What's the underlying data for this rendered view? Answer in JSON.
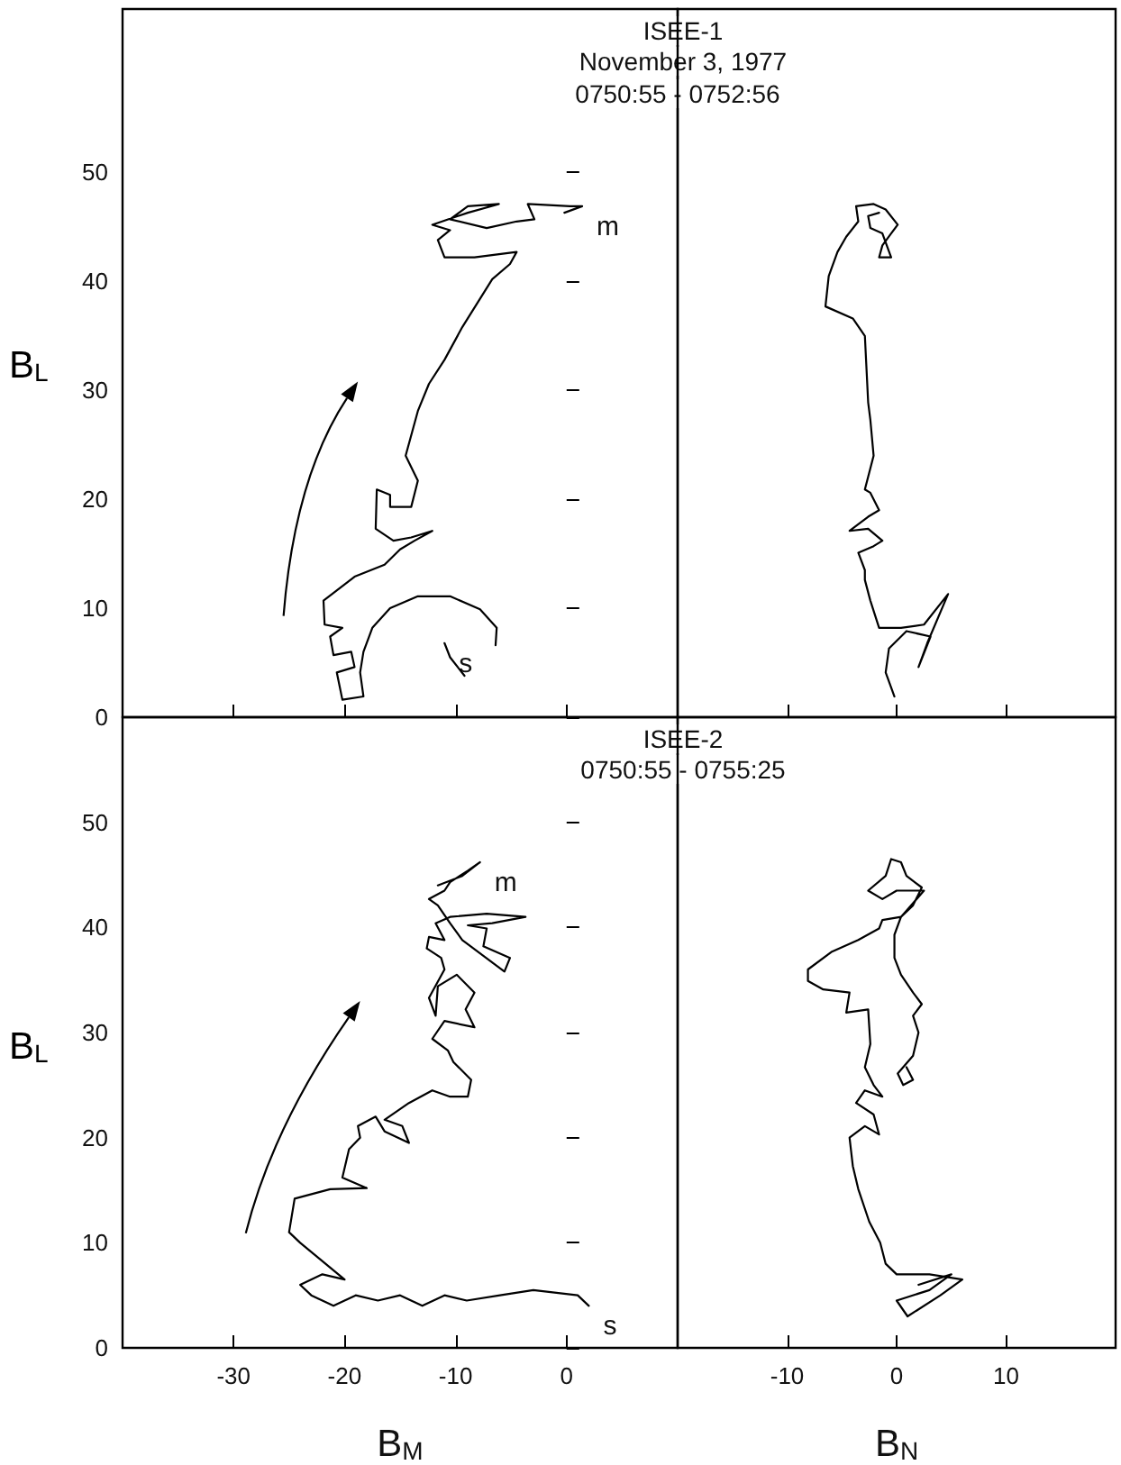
{
  "chart_data": [
    {
      "type": "line",
      "title": "ISEE-1",
      "subtitle": "November 3, 1977",
      "annotations": [
        "0750:55 - 0752:56",
        {
          "text": "s",
          "x": -11,
          "y": 6.8
        },
        {
          "text": "m",
          "x": 1.4,
          "y": 46.9
        }
      ],
      "ylabel": "B$_{L}$",
      "xlim": [
        -40,
        10
      ],
      "ylim": [
        0,
        65
      ],
      "xticks": [
        -30,
        -20,
        -10,
        0
      ],
      "yticks": [
        0,
        10,
        20,
        30,
        40,
        50
      ],
      "tick_labels": "y",
      "line_style": "solid",
      "series": [
        {
          "color": "#000000",
          "x": [
            -11,
            -10.5,
            -9.2,
            null,
            -6.4,
            -6.3,
            -7.8,
            -10.5,
            -13.4,
            -15.9,
            -17.5,
            -18.3,
            -18.6,
            -18.3,
            -20.2,
            -20.7,
            -19.1,
            -19.4,
            -21.0,
            -21.3,
            -20.2,
            -21.8,
            -21.9,
            -19.1,
            -16.4,
            -15.0,
            -13.7,
            -12.1,
            -14.0,
            -15.6,
            -17.2,
            -17.1,
            -15.9,
            -15.9,
            -14.0,
            -13.4,
            -14.5,
            -13.4,
            -12.4,
            -11.0,
            -9.4,
            -6.7,
            -5.1,
            -4.5,
            -8.3,
            -11.0,
            -11.6,
            -10.5,
            -12.1,
            -8.9,
            -6.1,
            -8.9,
            -10.5,
            -7.2,
            -4.5,
            -2.9,
            -3.5,
            0.3,
            1.4,
            -0.2
          ],
          "values": [
            6.8,
            5.5,
            3.8,
            null,
            6.6,
            8.2,
            9.9,
            11.1,
            11.1,
            10.0,
            8.2,
            6.0,
            4.1,
            1.9,
            1.6,
            4.1,
            4.6,
            6.0,
            5.7,
            7.4,
            8.2,
            8.5,
            10.7,
            12.9,
            14.0,
            15.4,
            16.2,
            17.1,
            16.5,
            16.2,
            17.3,
            20.9,
            20.4,
            19.3,
            19.3,
            21.7,
            24.0,
            28.1,
            30.6,
            32.8,
            35.8,
            40.2,
            41.6,
            42.7,
            42.2,
            42.2,
            43.8,
            44.7,
            45.2,
            46.3,
            47.1,
            46.9,
            45.7,
            44.9,
            45.5,
            45.7,
            47.1,
            46.9,
            46.9,
            46.3
          ]
        }
      ]
    },
    {
      "type": "line",
      "xlim": [
        -20,
        20
      ],
      "ylim": [
        0,
        65
      ],
      "xticks": [
        -10,
        0,
        10
      ],
      "yticks": [
        0,
        10,
        20,
        30,
        40,
        50
      ],
      "tick_labels": false,
      "line_style": "solid",
      "series": [
        {
          "color": "#000000",
          "x": [
            -0.2,
            -1.0,
            -0.7,
            0.9,
            3.1,
            2.0,
            2.8,
            4.7,
            2.5,
            0.4,
            -1.6,
            -2.4,
            -2.9,
            -2.9,
            -3.5,
            -2.1,
            -1.3,
            -2.6,
            -4.3,
            -2.6,
            -1.6,
            -2.4,
            -2.9,
            -2.1,
            -2.4,
            -2.6,
            -2.9,
            -4.0,
            -6.5,
            -6.2,
            -5.4,
            -4.6,
            -3.5,
            -3.7,
            -2.1,
            -1.0,
            0.1,
            -0.5,
            -1.3,
            -1.6,
            -0.5,
            -1.3,
            -2.4,
            -2.6,
            -1.6
          ],
          "values": [
            1.9,
            4.1,
            6.3,
            7.9,
            7.4,
            4.6,
            6.8,
            11.3,
            8.5,
            8.2,
            8.2,
            10.7,
            12.6,
            13.5,
            15.1,
            15.7,
            16.2,
            17.3,
            17.1,
            18.4,
            19.0,
            20.6,
            20.9,
            24.0,
            27.3,
            28.9,
            35.0,
            36.6,
            37.7,
            40.5,
            42.7,
            44.1,
            45.5,
            46.9,
            47.1,
            46.6,
            45.2,
            44.4,
            43.3,
            42.2,
            42.2,
            44.4,
            44.9,
            46.0,
            46.3
          ]
        }
      ]
    },
    {
      "type": "line",
      "title": "ISEE-2",
      "subtitle": "0750:55 - 0755:25",
      "annotations": [
        {
          "text": "s",
          "x": 2,
          "y": 4
        },
        {
          "text": "m",
          "x": -7.8,
          "y": 46.2
        }
      ],
      "xlabel": "B$_{M}$",
      "ylabel": "B$_{L}$",
      "xlim": [
        -40,
        10
      ],
      "ylim": [
        0,
        60
      ],
      "xticks": [
        -30,
        -20,
        -10,
        0
      ],
      "yticks": [
        0,
        10,
        20,
        30,
        40,
        50
      ],
      "line_style": "solid",
      "series": [
        {
          "color": "#000000",
          "x": [
            2,
            1,
            -3,
            -6,
            -9,
            -11,
            -13,
            -15,
            -17,
            -19,
            -21,
            -23,
            -24,
            -22,
            -20,
            -24,
            -25,
            -24.5,
            -21.3,
            -18.0,
            -20.2,
            -19.6,
            -18.6,
            -18.8,
            -17.2,
            -16.4,
            -14.2,
            -14.8,
            -16.4,
            -14.2,
            -12.1,
            -10.5,
            -8.9,
            -8.6,
            -10.2,
            -10.7,
            -12.1,
            -11.0,
            -8.3,
            -9.1,
            -8.3,
            -9.9,
            -11.6,
            -11.8,
            -12.4,
            -11.0,
            -11.3,
            -12.6,
            -12.4,
            -11.0,
            -11.8,
            -10.5,
            -7.2,
            -3.7,
            -6.7,
            -8.9,
            -7.2,
            -7.5,
            -5.1,
            -5.6,
            -9.4,
            -10.5,
            -11.6,
            -12.4,
            -11.0,
            -10.5,
            -8.9,
            -7.8,
            -9.4,
            -11.6
          ],
          "values": [
            4,
            5,
            5.5,
            5,
            4.5,
            5,
            4,
            5,
            4.5,
            5,
            4,
            5,
            6,
            7,
            6.5,
            10,
            11,
            14.2,
            15.1,
            15.2,
            16.2,
            18.9,
            20.0,
            21.1,
            22.0,
            20.6,
            19.5,
            21.1,
            21.7,
            23.3,
            24.5,
            23.9,
            23.9,
            25.5,
            27.2,
            28.3,
            29.4,
            31.1,
            30.5,
            32.2,
            33.8,
            35.5,
            34.4,
            31.6,
            33.3,
            36.0,
            37.1,
            38.0,
            39.1,
            38.8,
            40.4,
            41.0,
            41.3,
            41.0,
            40.4,
            40.2,
            39.9,
            38.2,
            37.1,
            35.8,
            38.8,
            40.4,
            42.1,
            42.7,
            43.5,
            44.3,
            45.4,
            46.2,
            44.9,
            44.0
          ]
        }
      ]
    },
    {
      "type": "line",
      "xlabel": "B$_{N}$",
      "xlim": [
        -20,
        20
      ],
      "ylim": [
        0,
        60
      ],
      "xticks": [
        -10,
        0,
        10
      ],
      "yticks": [
        0,
        10,
        20,
        30,
        40,
        50
      ],
      "tick_labels": "x",
      "line_style": "solid",
      "series": [
        {
          "color": "#000000",
          "x": [
            2,
            5,
            3,
            0,
            1,
            4,
            6,
            3,
            0,
            -1,
            -1.5,
            -2.5,
            -3.5,
            -4.0,
            -4.3,
            -2.9,
            -1.6,
            -2.1,
            -3.7,
            -2.9,
            -1.3,
            -2.1,
            -2.9,
            -2.4,
            -2.6,
            -4.6,
            -4.3,
            -6.7,
            -8.1,
            -8.1,
            -5.9,
            -3.5,
            -1.6,
            -1.3,
            0.4,
            1.5,
            2.3,
            0.9,
            0.4,
            -0.5,
            -1.0,
            -2.6,
            -1.3,
            0.0,
            2.5,
            0.4,
            -0.2,
            -0.2,
            0.4,
            1.5,
            2.3,
            1.5,
            2.0,
            1.5,
            0.1,
            0.6,
            1.5,
            0.9
          ],
          "values": [
            6,
            7,
            5.5,
            4.5,
            3,
            5,
            6.5,
            7,
            7,
            8,
            10,
            12,
            15.1,
            17.3,
            20.0,
            21.1,
            20.3,
            22.2,
            23.3,
            24.5,
            23.9,
            25.0,
            26.7,
            28.9,
            32.2,
            31.9,
            33.8,
            34.1,
            34.9,
            36.0,
            37.7,
            38.8,
            39.9,
            40.7,
            41.0,
            42.1,
            43.8,
            44.9,
            46.2,
            46.5,
            44.9,
            43.5,
            42.7,
            43.5,
            43.5,
            41.0,
            39.3,
            37.1,
            35.5,
            33.8,
            32.7,
            31.6,
            30.0,
            27.8,
            26.1,
            25.0,
            25.5,
            26.7
          ]
        }
      ]
    }
  ]
}
